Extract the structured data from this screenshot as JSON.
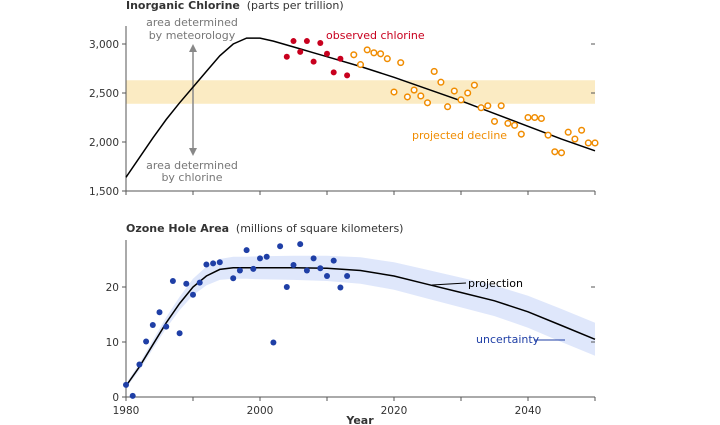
{
  "chart_data": [
    {
      "type": "scatter",
      "title": "Inorganic Chlorine",
      "title_units": "(parts per trillion)",
      "xlim": [
        1980,
        2050
      ],
      "ylim": [
        1500,
        3200
      ],
      "yticks": [
        "1,500",
        "2,000",
        "2,500",
        "3,000"
      ],
      "band": {
        "y0": 2390,
        "y1": 2630,
        "color": "#fbebc3"
      },
      "arrow_x": 1990,
      "annotations": {
        "meteorology": [
          "area determined",
          "by meteorology"
        ],
        "chlorine": [
          "area determined",
          "by chlorine"
        ],
        "observed": "observed chlorine",
        "projected": "projected decline"
      },
      "colors": {
        "observed": "#c8001e",
        "projected": "#f08c00",
        "curve": "#000000",
        "arrow": "#888888",
        "ann_gray": "#777777"
      },
      "curve": {
        "name": "model",
        "x": [
          1980,
          1982,
          1984,
          1986,
          1988,
          1990,
          1992,
          1994,
          1996,
          1998,
          2000,
          2002,
          2004,
          2006,
          2008,
          2010,
          2015,
          2020,
          2025,
          2030,
          2035,
          2040,
          2045,
          2050
        ],
        "y": [
          1640,
          1840,
          2040,
          2230,
          2400,
          2560,
          2720,
          2880,
          3000,
          3060,
          3060,
          3030,
          2990,
          2950,
          2910,
          2870,
          2770,
          2660,
          2540,
          2420,
          2290,
          2160,
          2030,
          1910
        ]
      },
      "series": [
        {
          "name": "observed chlorine",
          "x": [
            2004,
            2005,
            2006,
            2007,
            2008,
            2009,
            2010,
            2011,
            2012,
            2013
          ],
          "y": [
            2870,
            3030,
            2920,
            3030,
            2820,
            3010,
            2900,
            2710,
            2850,
            2680
          ]
        },
        {
          "name": "projected decline",
          "x": [
            2014,
            2015,
            2016,
            2017,
            2018,
            2019,
            2020,
            2021,
            2022,
            2023,
            2024,
            2025,
            2026,
            2027,
            2028,
            2029,
            2030,
            2031,
            2032,
            2033,
            2034,
            2035,
            2036,
            2037,
            2038,
            2039,
            2040,
            2041,
            2042,
            2043,
            2044,
            2045,
            2046,
            2047,
            2048,
            2049,
            2050
          ],
          "y": [
            2890,
            2790,
            2940,
            2910,
            2900,
            2850,
            2510,
            2810,
            2460,
            2530,
            2470,
            2400,
            2720,
            2610,
            2360,
            2520,
            2430,
            2500,
            2580,
            2350,
            2370,
            2210,
            2370,
            2190,
            2170,
            2080,
            2250,
            2250,
            2240,
            2070,
            1900,
            1890,
            2100,
            2030,
            2120,
            1990,
            1990
          ]
        }
      ]
    },
    {
      "type": "scatter",
      "title": "Ozone Hole Area",
      "title_units": "(millions of square kilometers)",
      "xlim": [
        1980,
        2050
      ],
      "ylim": [
        0,
        28
      ],
      "yticks": [
        "0",
        "10",
        "20"
      ],
      "xticks": [
        "1980",
        "2000",
        "2020",
        "2040"
      ],
      "xlabel": "Year",
      "annotations": {
        "projection": "projection",
        "uncertainty": "uncertainty"
      },
      "colors": {
        "points": "#1f3fa6",
        "band": "#dfe7fb",
        "curve": "#000000",
        "uncertainty_text": "#1f3fa6"
      },
      "projection": {
        "x": [
          1980,
          1982,
          1984,
          1986,
          1988,
          1990,
          1992,
          1994,
          1996,
          1998,
          2000,
          2005,
          2010,
          2015,
          2020,
          2025,
          2030,
          2035,
          2040,
          2045,
          2050
        ],
        "y": [
          2,
          5.5,
          9.5,
          13.5,
          17,
          20,
          22,
          23.2,
          23.5,
          23.5,
          23.5,
          23.5,
          23.4,
          23,
          22,
          20.5,
          19,
          17.5,
          15.5,
          13,
          10.5
        ],
        "band_half_width": [
          0.4,
          0.6,
          0.8,
          1,
          1.2,
          1.5,
          1.7,
          1.9,
          2,
          2,
          2.1,
          2.2,
          2.3,
          2.4,
          2.5,
          2.6,
          2.7,
          2.8,
          2.9,
          3,
          3
        ]
      },
      "series": [
        {
          "name": "observed",
          "x": [
            1980,
            1981,
            1982,
            1983,
            1984,
            1985,
            1986,
            1987,
            1988,
            1989,
            1990,
            1991,
            1992,
            1993,
            1994,
            1996,
            1997,
            1998,
            1999,
            2000,
            2001,
            2002,
            2003,
            2004,
            2005,
            2006,
            2007,
            2008,
            2009,
            2010,
            2011,
            2012,
            2013
          ],
          "y": [
            2.2,
            0.2,
            5.9,
            10.1,
            13.1,
            15.4,
            12.8,
            21.1,
            11.6,
            20.6,
            18.6,
            20.8,
            24.1,
            24.3,
            24.5,
            21.6,
            23.0,
            26.7,
            23.3,
            25.2,
            25.5,
            9.9,
            27.4,
            20.0,
            24.0,
            27.8,
            23.0,
            25.2,
            23.4,
            22.0,
            24.8,
            19.9,
            22.0
          ]
        }
      ]
    }
  ]
}
